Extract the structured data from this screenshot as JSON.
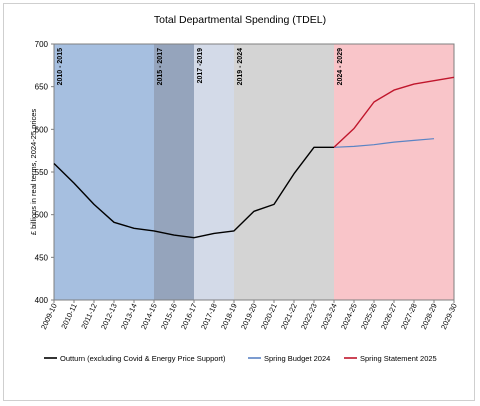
{
  "chart_data": {
    "type": "line",
    "title": "Total Departmental Spending (TDEL)",
    "ylabel": "£ billions in real terms, 2024-25 prices",
    "xlabel": "",
    "ylim": [
      400,
      700
    ],
    "yticks": [
      400,
      450,
      500,
      550,
      600,
      650,
      700
    ],
    "categories": [
      "2009-10",
      "2010-11",
      "2011-12",
      "2012-13",
      "2013-14",
      "2014-15",
      "2015-16",
      "2016-17",
      "2017-18",
      "2018-19",
      "2019-20",
      "2020-21",
      "2021-22",
      "2022-23",
      "2023-24",
      "2024-25",
      "2025-26",
      "2026-27",
      "2027-28",
      "2028-29",
      "2029-30"
    ],
    "periods": [
      {
        "label": "2010 - 2015",
        "start": "2009-10",
        "end": "2014-15",
        "color": "#a6bfe0"
      },
      {
        "label": "2015 - 2017",
        "start": "2014-15",
        "end": "2016-17",
        "color": "#95a4bc"
      },
      {
        "label": "2017 -2019",
        "start": "2016-17",
        "end": "2018-19",
        "color": "#d3dae8"
      },
      {
        "label": "2019 - 2024",
        "start": "2018-19",
        "end": "2023-24",
        "color": "#d4d4d4"
      },
      {
        "label": "2024 - 2029",
        "start": "2023-24",
        "end": "2029-30",
        "color": "#f9c5c9"
      }
    ],
    "series": [
      {
        "name": "Outturn (excluding Covid & Energy Price Support)",
        "color": "#000000",
        "x": [
          "2009-10",
          "2010-11",
          "2011-12",
          "2012-13",
          "2013-14",
          "2014-15",
          "2015-16",
          "2016-17",
          "2017-18",
          "2018-19",
          "2019-20",
          "2020-21",
          "2021-22",
          "2022-23",
          "2023-24"
        ],
        "values": [
          560,
          537,
          512,
          491,
          484,
          481,
          476,
          473,
          478,
          481,
          504,
          512,
          548,
          579,
          579
        ]
      },
      {
        "name": "Spring Budget 2024",
        "color": "#5b84c4",
        "x": [
          "2023-24",
          "2024-25",
          "2025-26",
          "2026-27",
          "2027-28",
          "2028-29"
        ],
        "values": [
          579,
          580,
          582,
          585,
          587,
          589
        ]
      },
      {
        "name": "Spring Statement 2025",
        "color": "#c0162c",
        "x": [
          "2023-24",
          "2024-25",
          "2025-26",
          "2026-27",
          "2027-28",
          "2028-29",
          "2029-30"
        ],
        "values": [
          579,
          601,
          632,
          646,
          653,
          657,
          661
        ]
      }
    ],
    "legend_position": "bottom"
  }
}
